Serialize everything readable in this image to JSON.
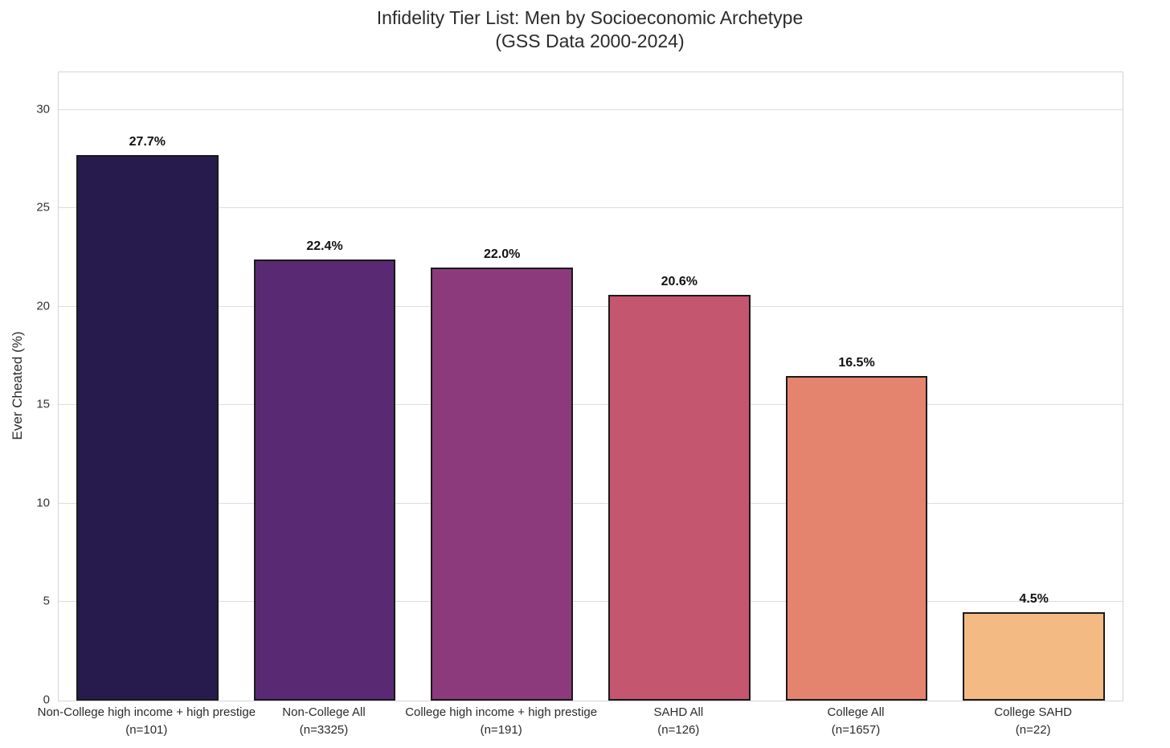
{
  "figure": {
    "title_line1": "Infidelity Tier List: Men by Socioeconomic Archetype",
    "title_line2": "(GSS Data 2000-2024)"
  },
  "chart_data": {
    "type": "bar",
    "title": "Infidelity Tier List: Men by Socioeconomic Archetype (GSS Data 2000-2024)",
    "xlabel": "",
    "ylabel": "Ever Cheated (%)",
    "ylim": [
      0,
      31.9
    ],
    "yticks": [
      0,
      5,
      10,
      15,
      20,
      25,
      30
    ],
    "grid": "horizontal",
    "legend": "none",
    "categories": [
      "Non-College high income + high prestige",
      "Non-College All",
      "College high income + high prestige",
      "SAHD All",
      "College All",
      "College SAHD"
    ],
    "sample_sizes": [
      "(n=101)",
      "(n=3325)",
      "(n=191)",
      "(n=126)",
      "(n=1657)",
      "(n=22)"
    ],
    "values": [
      27.7,
      22.4,
      22.0,
      20.6,
      16.5,
      4.5
    ],
    "value_labels": [
      "27.7%",
      "22.4%",
      "22.0%",
      "20.6%",
      "16.5%",
      "4.5%"
    ],
    "bar_colors": [
      "#271b4d",
      "#592a73",
      "#8c3a7c",
      "#c4566f",
      "#e5846e",
      "#f3ba83"
    ],
    "bar_edge_color": "#1a1a1a",
    "grid_color": "#dcdcdc",
    "background_color": "#ffffff"
  }
}
